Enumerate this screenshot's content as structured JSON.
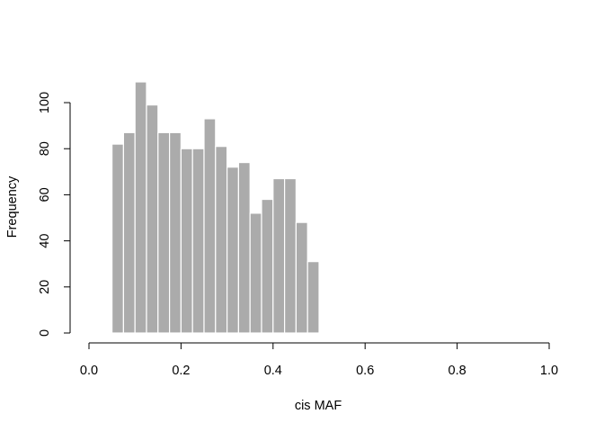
{
  "chart_data": {
    "type": "bar",
    "title": "",
    "xlabel": "cis MAF",
    "ylabel": "Frequency",
    "xlim": [
      0,
      1
    ],
    "ylim": [
      0,
      109
    ],
    "bin_width": 0.025,
    "x_ticks": [
      0,
      0.2,
      0.4,
      0.6,
      0.8,
      1
    ],
    "x_tick_labels": [
      "0.0",
      "0.2",
      "0.4",
      "0.6",
      "0.8",
      "1.0"
    ],
    "y_ticks": [
      0,
      20,
      40,
      60,
      80,
      100
    ],
    "y_tick_labels": [
      "0",
      "20",
      "40",
      "60",
      "80",
      "100"
    ],
    "bin_starts": [
      0.05,
      0.075,
      0.1,
      0.125,
      0.15,
      0.175,
      0.2,
      0.225,
      0.25,
      0.275,
      0.3,
      0.325,
      0.35,
      0.375,
      0.4,
      0.425,
      0.45,
      0.475
    ],
    "values": [
      82,
      87,
      109,
      99,
      87,
      87,
      80,
      80,
      93,
      81,
      72,
      74,
      52,
      58,
      67,
      67,
      48,
      31
    ],
    "grid": false,
    "legend": "none",
    "colors": {
      "bar_fill": "#ababab",
      "bar_border": "#ffffff",
      "axis": "#000000"
    }
  }
}
